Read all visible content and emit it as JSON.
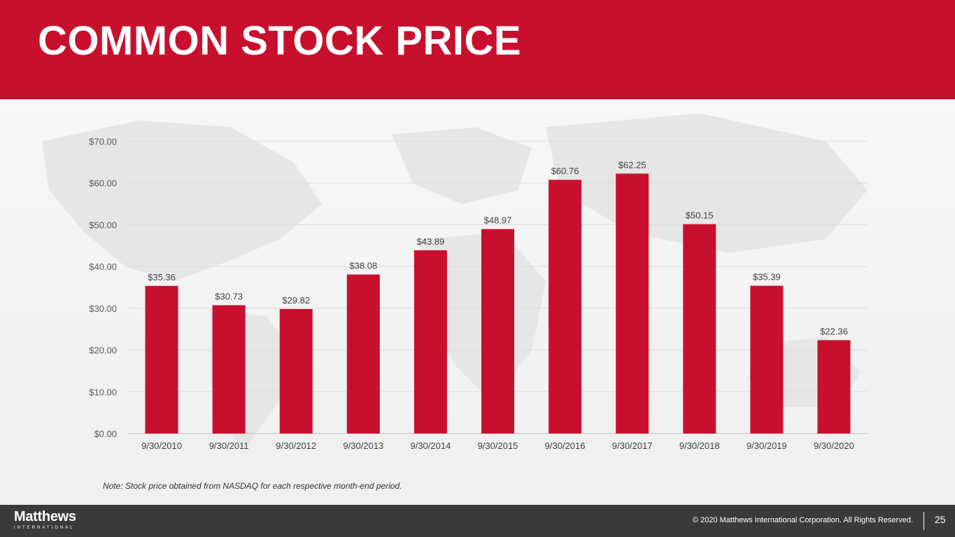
{
  "header": {
    "title": "COMMON STOCK PRICE"
  },
  "colors": {
    "brand": "#c8102e",
    "footer": "#3a3a3a",
    "grid": "#d9d9d9",
    "text": "#595959"
  },
  "chart_data": {
    "type": "bar",
    "title": "",
    "xlabel": "",
    "ylabel": "",
    "ylim": [
      0,
      70
    ],
    "yticks": [
      0,
      10,
      20,
      30,
      40,
      50,
      60,
      70
    ],
    "ytick_labels": [
      "$0.00",
      "$10.00",
      "$20.00",
      "$30.00",
      "$40.00",
      "$50.00",
      "$60.00",
      "$70.00"
    ],
    "categories": [
      "9/30/2010",
      "9/30/2011",
      "9/30/2012",
      "9/30/2013",
      "9/30/2014",
      "9/30/2015",
      "9/30/2016",
      "9/30/2017",
      "9/30/2018",
      "9/30/2019",
      "9/30/2020"
    ],
    "values": [
      35.36,
      30.73,
      29.82,
      38.08,
      43.89,
      48.97,
      60.76,
      62.25,
      50.15,
      35.39,
      22.36
    ],
    "labels": [
      "$35.36",
      "$30.73",
      "$29.82",
      "$38.08",
      "$43.89",
      "$48.97",
      "$60.76",
      "$62.25",
      "$50.15",
      "$35.39",
      "$22.36"
    ],
    "grid": true,
    "legend": "none",
    "bar_color": "#c8102e"
  },
  "note": "Note: Stock price obtained from NASDAQ for each respective month-end period.",
  "footer": {
    "logo_main": "Matthews",
    "logo_sub": "INTERNATIONAL",
    "copyright": "© 2020 Matthews International Corporation. All Rights Reserved.",
    "page_number": "25"
  }
}
